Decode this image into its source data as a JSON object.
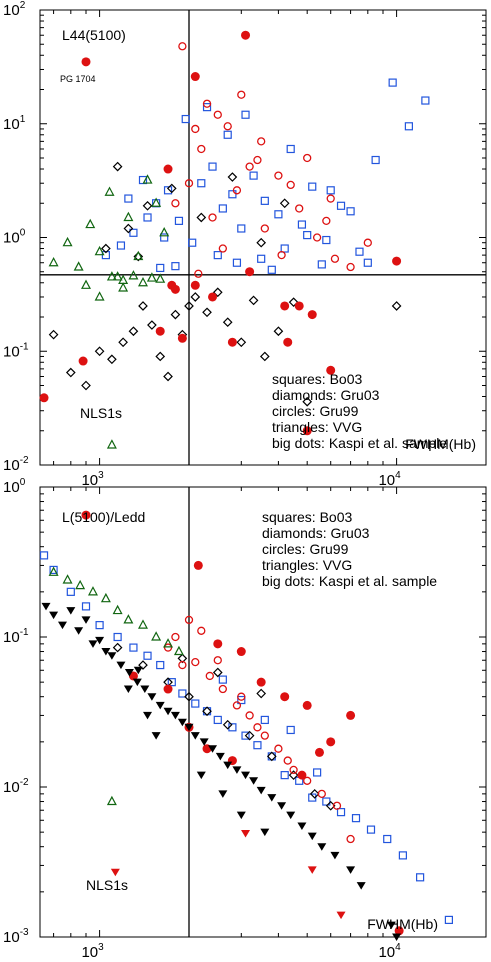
{
  "chart_data": [
    {
      "type": "scatter",
      "title": "L44(5100)",
      "xlabel": "FWHM(Hb)",
      "ylabel": "",
      "x_scale": "log",
      "y_scale": "log",
      "xlim": [
        630,
        20000
      ],
      "ylim": [
        0.01,
        100
      ],
      "x_ticks": [
        {
          "value": 1000,
          "mantissa": "10",
          "exp": "3"
        },
        {
          "value": 10000,
          "mantissa": "10",
          "exp": "4"
        }
      ],
      "y_ticks": [
        {
          "value": 100,
          "mantissa": "10",
          "exp": "2"
        },
        {
          "value": 10,
          "mantissa": "10",
          "exp": "1"
        },
        {
          "value": 1,
          "mantissa": "10",
          "exp": "0"
        },
        {
          "value": 0.1,
          "mantissa": "10",
          "exp": "-1"
        },
        {
          "value": 0.01,
          "mantissa": "10",
          "exp": "-2"
        }
      ],
      "reference_lines": {
        "x": 2000,
        "y": 0.47
      },
      "annotations": {
        "nls1": "NLS1s",
        "pg1704": "PG 1704"
      },
      "legend_lines": [
        "squares: Bo03",
        "diamonds: Gru03",
        "circles: Gru99",
        "triangles: VVG",
        "big dots: Kaspi et al. sample"
      ],
      "grid": false,
      "series": [
        {
          "name": "Bo03",
          "marker": "square",
          "color": "#2255dd",
          "x": [
            5600,
            1050,
            1180,
            1300,
            1450,
            1550,
            1700,
            1850,
            2050,
            2200,
            2400,
            2600,
            2800,
            3000,
            3300,
            3600,
            4000,
            4400,
            4800,
            5200,
            5800,
            6500,
            7500,
            8500,
            9700,
            11000,
            12500,
            3100,
            2700,
            2300,
            1950,
            1650,
            1400,
            1250,
            3500,
            4200,
            5000,
            6000,
            7000,
            8000,
            3800,
            2900,
            2500,
            1800,
            1600
          ],
          "y": [
            0.58,
            0.7,
            0.85,
            1.1,
            1.5,
            2.0,
            2.6,
            1.4,
            0.9,
            3.0,
            4.2,
            1.8,
            2.4,
            1.2,
            3.5,
            2.1,
            1.6,
            6.0,
            1.3,
            2.8,
            0.95,
            1.9,
            0.75,
            4.8,
            23.0,
            9.5,
            16.0,
            12.0,
            8.0,
            14.0,
            11.0,
            1.0,
            3.2,
            2.2,
            0.65,
            0.8,
            1.05,
            2.6,
            1.7,
            0.6,
            0.52,
            0.6,
            0.7,
            0.56,
            0.54
          ]
        },
        {
          "name": "Gru03",
          "marker": "diamond",
          "color": "#000000",
          "x": [
            700,
            800,
            900,
            1000,
            1100,
            1200,
            1300,
            1400,
            1500,
            1600,
            1700,
            1800,
            1900,
            2000,
            2100,
            2300,
            2500,
            2700,
            3000,
            3300,
            3600,
            4000,
            4500,
            5000,
            1050,
            1250,
            1450,
            1750,
            2200,
            2800,
            3500,
            4200,
            10000,
            1150,
            1350
          ],
          "y": [
            0.14,
            0.065,
            0.05,
            0.1,
            0.085,
            0.12,
            0.15,
            0.25,
            0.17,
            0.09,
            0.06,
            0.21,
            0.14,
            0.25,
            0.3,
            0.22,
            0.33,
            0.18,
            0.12,
            0.28,
            0.09,
            0.15,
            0.27,
            0.036,
            0.8,
            1.2,
            1.9,
            2.7,
            1.5,
            3.4,
            0.9,
            2.0,
            0.25,
            4.2,
            0.68
          ]
        },
        {
          "name": "Gru99",
          "marker": "circle",
          "color": "#dd1111",
          "x": [
            1800,
            2000,
            2200,
            2400,
            2600,
            2900,
            3200,
            3600,
            4100,
            4700,
            5400,
            6200,
            7000,
            2100,
            2500,
            3000,
            3500,
            4000,
            5000,
            6000,
            1900,
            2300,
            2700,
            3400,
            4400,
            5800,
            8000,
            2150
          ],
          "y": [
            2.0,
            3.0,
            6.0,
            1.5,
            0.8,
            2.6,
            4.2,
            1.2,
            0.7,
            1.8,
            1.0,
            0.65,
            0.55,
            9.0,
            12.0,
            18.0,
            7.0,
            3.5,
            5.0,
            2.2,
            48.0,
            15.0,
            9.5,
            4.8,
            2.9,
            1.4,
            0.9,
            0.48
          ]
        },
        {
          "name": "VVG",
          "marker": "triangle",
          "color": "#116611",
          "x": [
            620,
            700,
            780,
            850,
            930,
            1000,
            1080,
            1150,
            1250,
            1350,
            1450,
            1550,
            1650,
            1100,
            1200,
            1300,
            1400,
            1500,
            1600,
            900,
            1000,
            1100,
            1200
          ],
          "y": [
            1.7,
            0.6,
            0.9,
            0.55,
            1.3,
            0.75,
            2.5,
            0.45,
            1.5,
            0.68,
            3.2,
            2.0,
            1.1,
            0.45,
            0.42,
            0.46,
            0.4,
            0.44,
            0.43,
            0.38,
            0.3,
            0.015,
            0.36
          ]
        },
        {
          "name": "Kaspi et al. sample",
          "marker": "bigdot",
          "color": "#dd1111",
          "x": [
            900,
            2100,
            3100,
            1600,
            1750,
            1900,
            2100,
            2400,
            2800,
            3200,
            4200,
            4700,
            6000,
            1700,
            1800,
            4300,
            5200,
            10000,
            5000,
            650,
            880
          ],
          "y": [
            35.0,
            26.0,
            60.0,
            0.15,
            0.38,
            0.13,
            0.38,
            0.3,
            0.12,
            0.5,
            0.25,
            0.25,
            0.068,
            4.0,
            0.35,
            0.12,
            0.21,
            0.62,
            0.02,
            0.039,
            0.082
          ]
        }
      ]
    },
    {
      "type": "scatter",
      "title": "L(5100)/Ledd",
      "xlabel": "FWHM(Hb)",
      "ylabel": "",
      "x_scale": "log",
      "y_scale": "log",
      "xlim": [
        630,
        20000
      ],
      "ylim": [
        0.001,
        1
      ],
      "x_ticks": [
        {
          "value": 1000,
          "mantissa": "10",
          "exp": "3"
        },
        {
          "value": 10000,
          "mantissa": "10",
          "exp": "4"
        }
      ],
      "y_ticks": [
        {
          "value": 1,
          "mantissa": "10",
          "exp": "0"
        },
        {
          "value": 0.1,
          "mantissa": "10",
          "exp": "-1"
        },
        {
          "value": 0.01,
          "mantissa": "10",
          "exp": "-2"
        },
        {
          "value": 0.001,
          "mantissa": "10",
          "exp": "-3"
        }
      ],
      "reference_lines": {
        "x": 2000
      },
      "annotations": {
        "nls1": "NLS1s"
      },
      "legend_lines": [
        "squares: Bo03",
        "diamonds: Gru03",
        "circles: Gru99",
        "triangles: VVG",
        "big dots: Kaspi et al. sample"
      ],
      "grid": false,
      "series": [
        {
          "name": "Bo03",
          "marker": "square",
          "color": "#2255dd",
          "x": [
            650,
            700,
            800,
            900,
            1000,
            1150,
            1300,
            1450,
            1600,
            1750,
            1900,
            2100,
            2300,
            2500,
            2800,
            3100,
            3400,
            3800,
            4200,
            4700,
            5200,
            5800,
            6500,
            7300,
            8200,
            9300,
            10500,
            12000,
            15000,
            2600,
            3000,
            3600,
            4400,
            5400
          ],
          "y": [
            0.35,
            0.28,
            0.2,
            0.16,
            0.12,
            0.1,
            0.085,
            0.075,
            0.065,
            0.05,
            0.042,
            0.036,
            0.032,
            0.028,
            0.025,
            0.022,
            0.019,
            0.016,
            0.012,
            0.011,
            0.0085,
            0.008,
            0.0068,
            0.0062,
            0.0052,
            0.0045,
            0.0035,
            0.0025,
            0.0013,
            0.052,
            0.038,
            0.028,
            0.024,
            0.0125
          ]
        },
        {
          "name": "Gru03",
          "marker": "diamond",
          "color": "#000000",
          "x": [
            1150,
            1400,
            1700,
            2000,
            2300,
            2700,
            3200,
            3800,
            4500,
            5300,
            6000,
            3500,
            2500,
            1900
          ],
          "y": [
            0.085,
            0.065,
            0.05,
            0.04,
            0.032,
            0.026,
            0.022,
            0.016,
            0.012,
            0.009,
            0.0075,
            0.042,
            0.058,
            0.072
          ]
        },
        {
          "name": "Gru99",
          "marker": "circle",
          "color": "#dd1111",
          "x": [
            1700,
            1900,
            2100,
            2350,
            2600,
            2900,
            3200,
            3600,
            4000,
            4500,
            5000,
            5600,
            6300,
            7000,
            2000,
            2200,
            2500,
            3000,
            3400,
            4300,
            1800
          ],
          "y": [
            0.085,
            0.065,
            0.068,
            0.055,
            0.045,
            0.035,
            0.03,
            0.022,
            0.018,
            0.013,
            0.011,
            0.009,
            0.0075,
            0.0045,
            0.13,
            0.11,
            0.07,
            0.04,
            0.025,
            0.015,
            0.1
          ]
        },
        {
          "name": "VVG",
          "marker": "triangle",
          "color": "#116611",
          "x": [
            700,
            780,
            860,
            950,
            1050,
            1150,
            1250,
            1400,
            1550,
            1700,
            1850,
            1100
          ],
          "y": [
            0.27,
            0.24,
            0.22,
            0.2,
            0.18,
            0.15,
            0.13,
            0.12,
            0.1,
            0.09,
            0.08,
            0.008
          ]
        },
        {
          "name": "Kaspi et al. sample",
          "marker": "bigdot",
          "color": "#dd1111",
          "x": [
            900,
            2150,
            2500,
            3000,
            3500,
            4200,
            5000,
            6000,
            7000,
            1300,
            1700,
            2000,
            2300,
            2800,
            4800,
            5500,
            10200
          ],
          "y": [
            0.65,
            0.3,
            0.09,
            0.08,
            0.05,
            0.04,
            0.035,
            0.02,
            0.03,
            0.055,
            0.045,
            0.025,
            0.018,
            0.015,
            0.012,
            0.017,
            0.0011
          ]
        },
        {
          "name": "downward triangles",
          "marker": "down-triangle",
          "color": "#000000",
          "x": [
            660,
            700,
            750,
            800,
            850,
            900,
            950,
            1000,
            1050,
            1100,
            1180,
            1260,
            1340,
            1420,
            1500,
            1600,
            1700,
            1800,
            1900,
            2000,
            2100,
            2250,
            2400,
            2550,
            2700,
            2900,
            3100,
            3300,
            3500,
            3800,
            4100,
            4400,
            4800,
            5200,
            5600,
            6200,
            7000,
            7600,
            9600,
            10000,
            1250,
            1350,
            1450,
            1550,
            2200,
            2600,
            3000,
            3600
          ],
          "y": [
            0.16,
            0.14,
            0.12,
            0.15,
            0.11,
            0.13,
            0.09,
            0.095,
            0.08,
            0.075,
            0.065,
            0.058,
            0.05,
            0.045,
            0.04,
            0.035,
            0.032,
            0.03,
            0.027,
            0.025,
            0.022,
            0.02,
            0.018,
            0.016,
            0.014,
            0.013,
            0.012,
            0.011,
            0.0095,
            0.0085,
            0.0075,
            0.0065,
            0.0055,
            0.0047,
            0.004,
            0.0035,
            0.0028,
            0.0022,
            0.0012,
            0.001,
            0.045,
            0.06,
            0.03,
            0.022,
            0.012,
            0.009,
            0.0065,
            0.005
          ]
        },
        {
          "name": "red downward triangles",
          "marker": "down-triangle",
          "color": "#dd1111",
          "x": [
            1130,
            3100,
            5200,
            6500
          ],
          "y": [
            0.0027,
            0.0049,
            0.0028,
            0.0014
          ]
        }
      ]
    }
  ]
}
